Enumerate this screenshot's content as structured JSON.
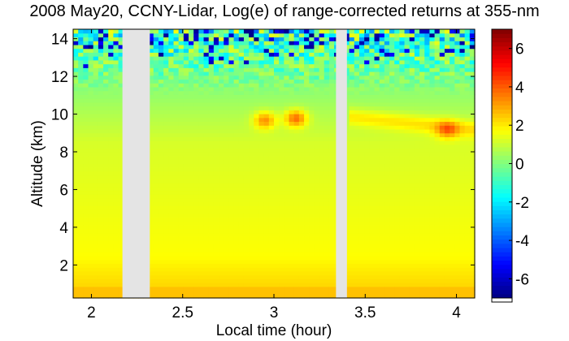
{
  "chart_data": {
    "type": "heatmap",
    "title": "2008 May20, CCNY-Lidar, Log(e) of range-corrected returns at 355-nm",
    "xlabel": "Local time (hour)",
    "ylabel": "Altitude (km)",
    "xlim": [
      1.9,
      4.1
    ],
    "ylim": [
      0.25,
      14.5
    ],
    "xticks": [
      2,
      2.5,
      3,
      3.5,
      4
    ],
    "xtick_labels": [
      "2",
      "2.5",
      "3",
      "3.5",
      "4"
    ],
    "yticks": [
      2,
      4,
      6,
      8,
      10,
      12,
      14
    ],
    "ytick_labels": [
      "2",
      "4",
      "6",
      "8",
      "10",
      "12",
      "14"
    ],
    "data_gaps_hour": [
      [
        2.17,
        2.32
      ],
      [
        3.34,
        3.4
      ]
    ],
    "colorbar": {
      "range": [
        -7,
        7
      ],
      "ticks": [
        6,
        4,
        2,
        0,
        -2,
        -4,
        -6
      ],
      "tick_labels": [
        "6",
        "4",
        "2",
        "0",
        "-2",
        "-4",
        "-6"
      ],
      "colormap": "jet"
    },
    "features": [
      {
        "kind": "cirrus",
        "time_hour": 2.95,
        "altitude_km": 9.7,
        "log_value": 3.5
      },
      {
        "kind": "cirrus",
        "time_hour": 3.12,
        "altitude_km": 9.8,
        "log_value": 4.0
      },
      {
        "kind": "cirrus",
        "time_hour": 3.95,
        "altitude_km": 9.2,
        "log_value": 3.2
      }
    ],
    "grid": false
  }
}
